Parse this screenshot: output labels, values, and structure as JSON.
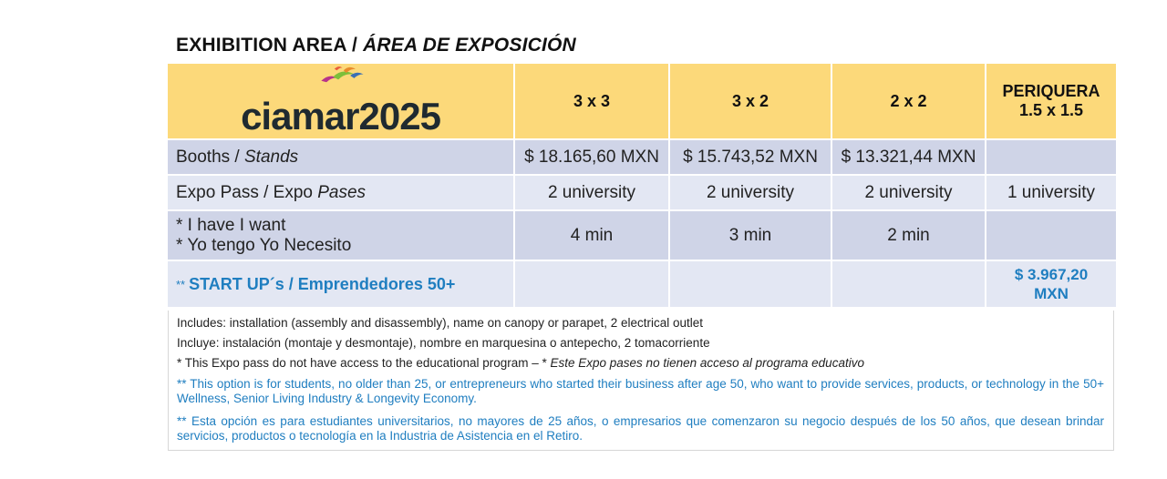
{
  "heading": {
    "main": "EXHIBITION AREA / ",
    "italic": "ÁREA DE EXPOSICIÓN"
  },
  "logo": {
    "text": "ciamar2025"
  },
  "columns": [
    "3 x 3",
    "3 x 2",
    "2 x 2",
    "PERIQUERA\n1.5 x 1.5"
  ],
  "column_header_lines": {
    "periquera_1": "PERIQUERA",
    "periquera_2": "1.5 x 1.5"
  },
  "rows": {
    "booths": {
      "label": "Booths / ",
      "label_italic": "Stands",
      "values": [
        "$ 18.165,60 MXN",
        "$ 15.743,52 MXN",
        "$ 13.321,44 MXN",
        ""
      ]
    },
    "expo_pass": {
      "label": "Expo Pass / Expo ",
      "label_italic": "Pases",
      "values": [
        "2 university",
        "2 university",
        "2 university",
        "1 university"
      ]
    },
    "ihave": {
      "label_line1": "* I have I want",
      "label_line2": "* Yo tengo Yo Necesito",
      "values": [
        "4 min",
        "3 min",
        "2 min",
        ""
      ]
    },
    "startup": {
      "stars": "**",
      "label": "START UP´s / Emprendedores 50+",
      "values": [
        "",
        "",
        "",
        "$ 3.967,20\nMXN"
      ],
      "price_line1": "$ 3.967,20",
      "price_line2": "MXN"
    }
  },
  "notes": {
    "includes_en": "Includes: installation (assembly and disassembly), name on canopy or parapet, 2 electrical outlet",
    "includes_es": "Incluye: instalación (montaje y desmontaje), nombre en marquesina o antepecho, 2 tomacorriente",
    "expo_note": "* This Expo pass do not have access to the educational program – * ",
    "expo_note_italic": "Este Expo pases no tienen acceso al programa educativo",
    "startup_en": "** This option is for students, no older than 25, or entrepreneurs who started their business after age 50, who want to provide services, products, or technology in the 50+ Wellness, Senior Living Industry & Longevity Economy.",
    "startup_es": "** Esta opción es para estudiantes universitarios, no mayores de 25 años, o empresarios que comenzaron su negocio después de los 50 años, que desean brindar servicios, productos o tecnología en la Industria de Asistencia en el Retiro."
  },
  "colors": {
    "header_yellow": "#fcd97a",
    "row_dark": "#cfd4e7",
    "row_light": "#e3e7f3",
    "accent_blue": "#1f7ec0"
  }
}
